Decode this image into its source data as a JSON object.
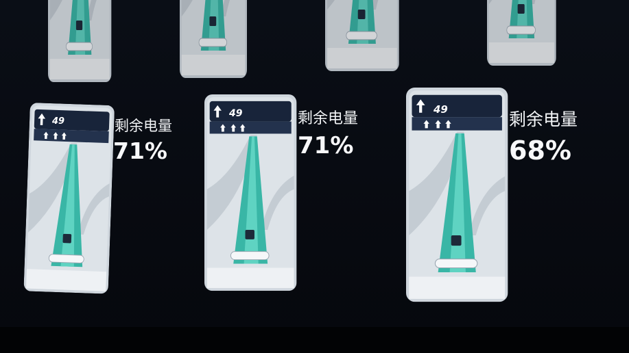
{
  "phones": [
    {
      "nav_distance": "49",
      "label": "剩余电量",
      "battery": "71%"
    },
    {
      "nav_distance": "49",
      "label": "剩余电量",
      "battery": "71%"
    },
    {
      "nav_distance": "49",
      "label": "剩余电量",
      "battery": "68%"
    }
  ]
}
